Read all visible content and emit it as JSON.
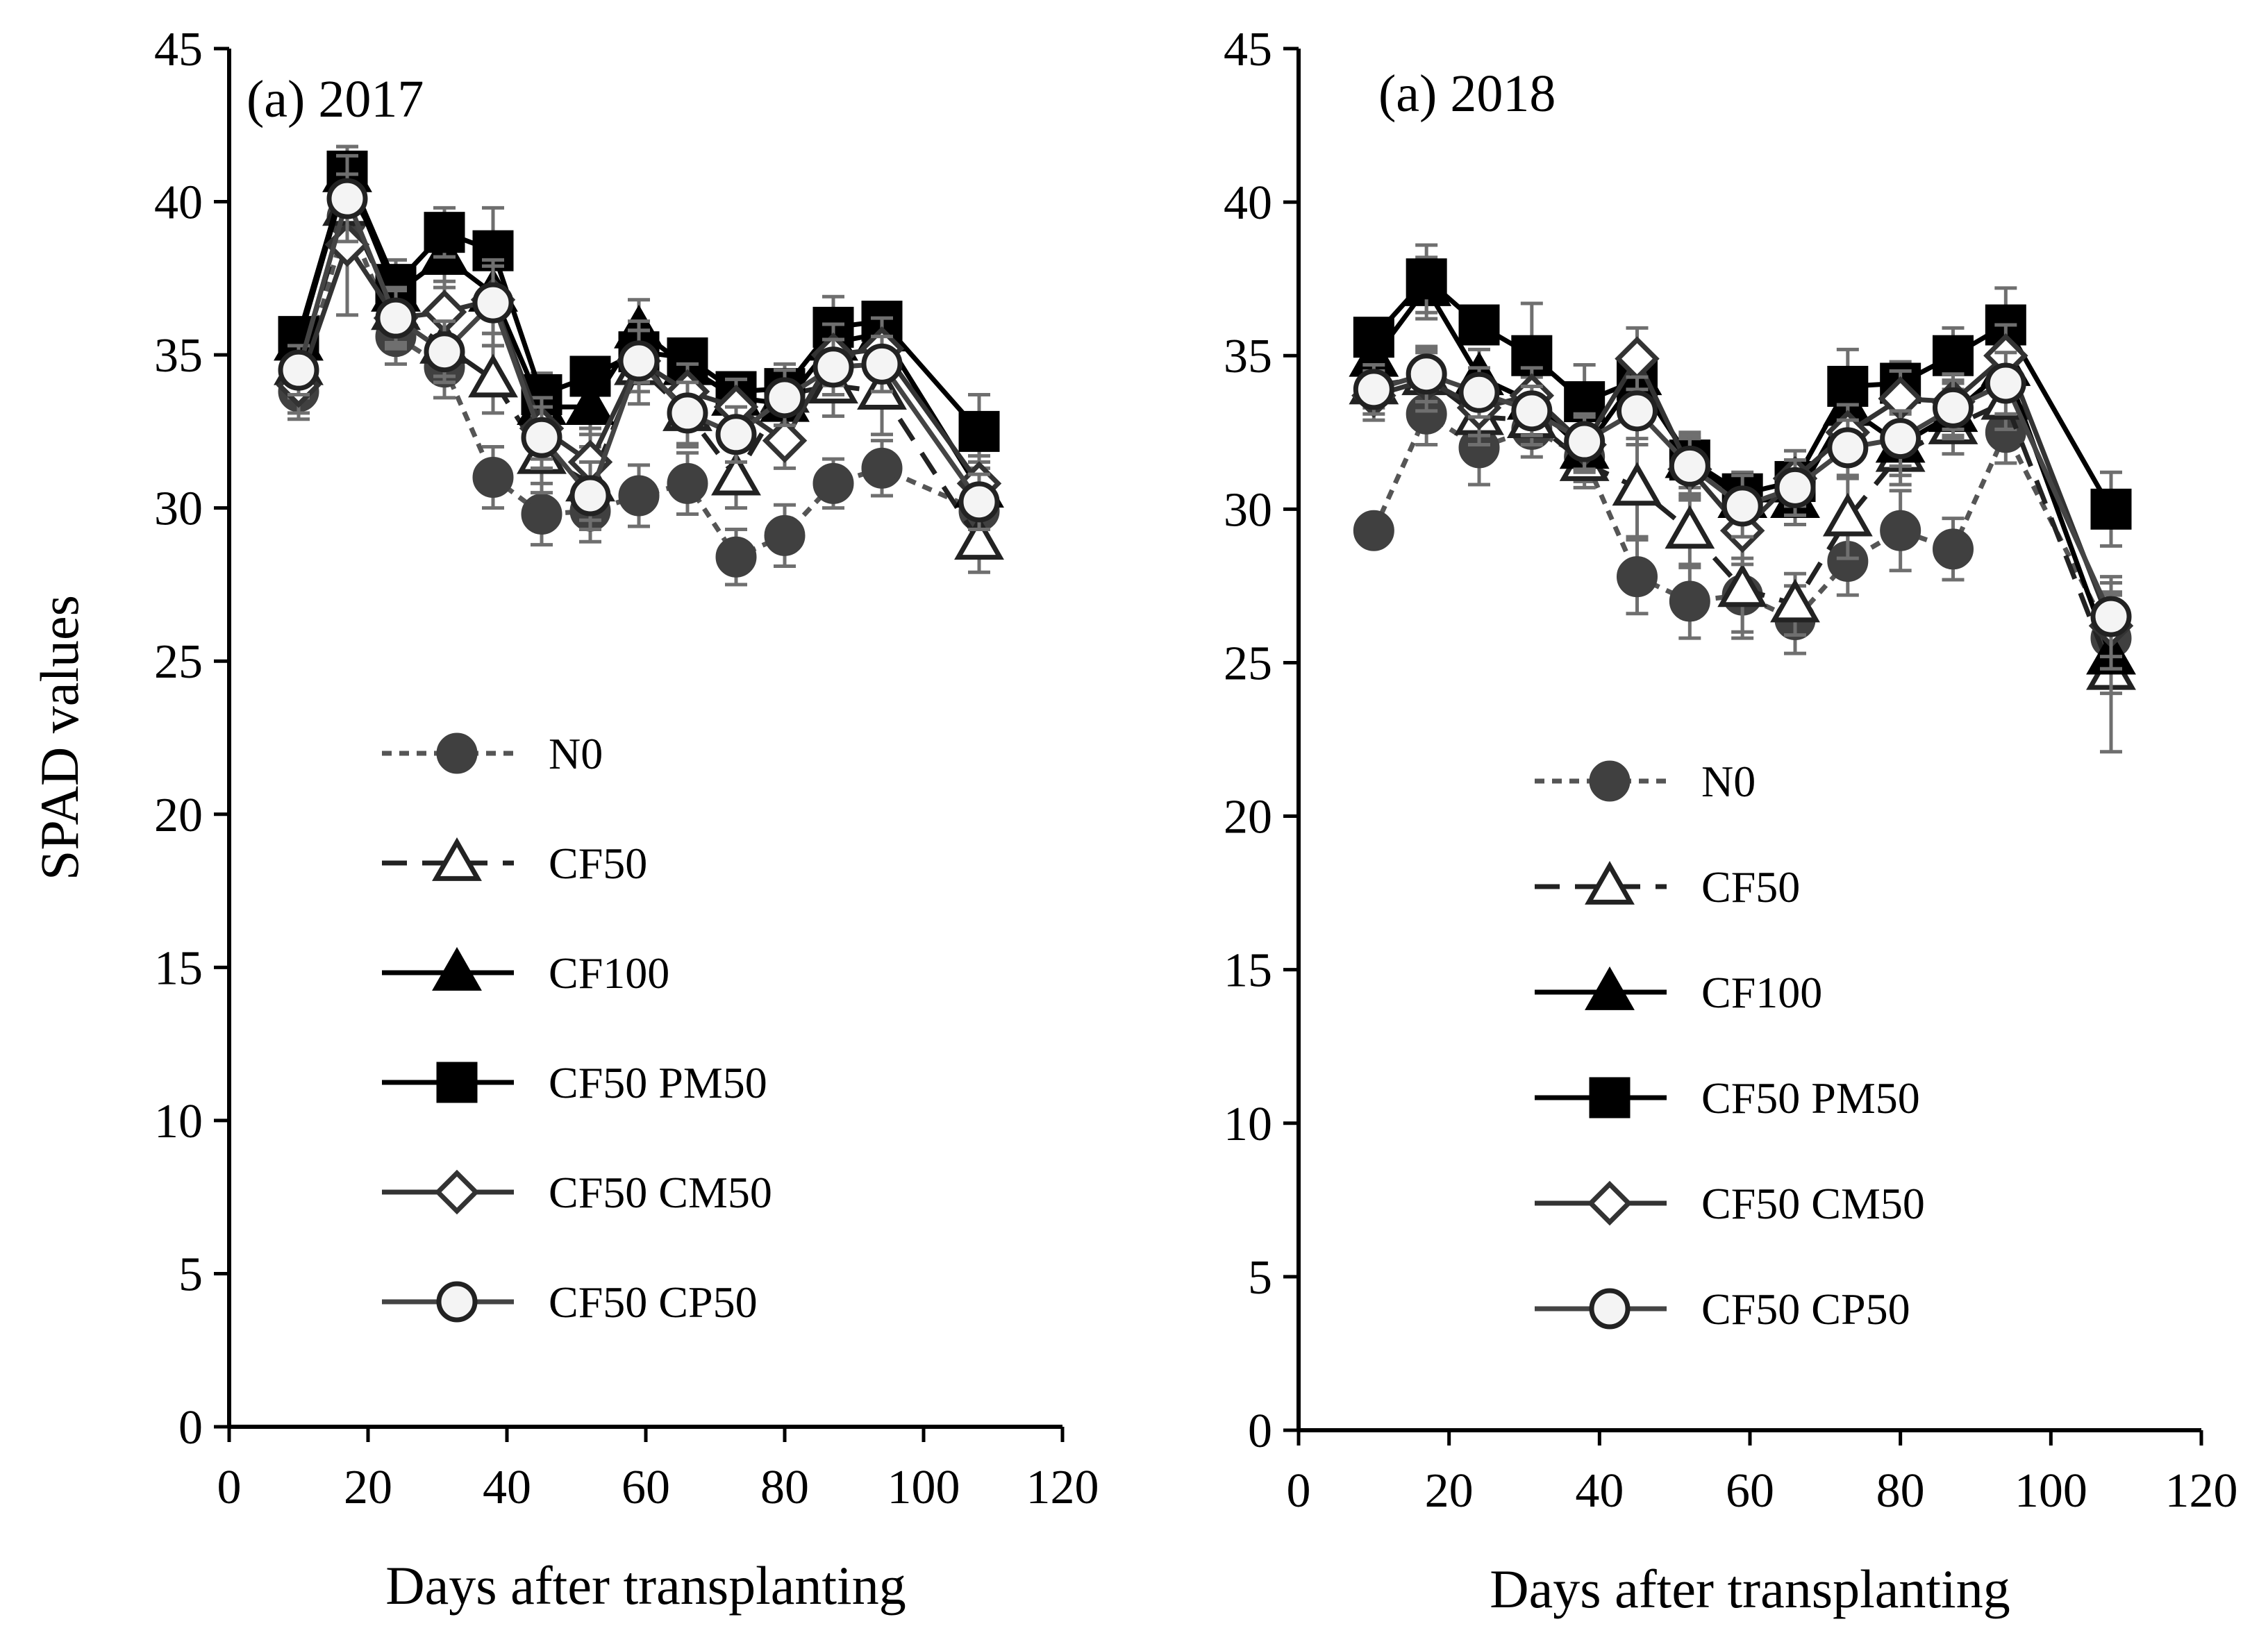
{
  "chart_data": [
    {
      "type": "line",
      "title": "(a) 2017",
      "xlabel": "Days after transplanting",
      "ylabel": "SPAD values",
      "xlim": [
        0,
        120
      ],
      "ylim": [
        0,
        45
      ],
      "x_ticks": [
        "0",
        "20",
        "40",
        "60",
        "80",
        "100",
        "120"
      ],
      "y_ticks": [
        "0",
        "5",
        "10",
        "15",
        "20",
        "25",
        "30",
        "35",
        "40",
        "45"
      ],
      "grid": false,
      "legend_position": "lower-center",
      "x": [
        10,
        17,
        24,
        31,
        38,
        45,
        52,
        59,
        66,
        73,
        80,
        87,
        94,
        108
      ],
      "series": [
        {
          "name": "N0",
          "values": [
            33.8,
            39.5,
            35.6,
            34.6,
            31.0,
            29.8,
            29.9,
            30.4,
            30.8,
            28.4,
            29.1,
            30.8,
            31.3,
            29.9
          ],
          "errors": [
            0.9,
            1.0,
            0.9,
            1.0,
            1.0,
            1.0,
            1.0,
            1.0,
            1.0,
            0.9,
            1.0,
            0.8,
            0.9,
            0.9
          ]
        },
        {
          "name": "CF50",
          "values": [
            34.6,
            39.8,
            36.4,
            35.3,
            34.2,
            31.7,
            30.8,
            34.6,
            33.1,
            31.0,
            33.7,
            34.0,
            33.8,
            28.9
          ],
          "errors": [
            1.0,
            1.2,
            1.0,
            1.0,
            1.1,
            1.2,
            1.2,
            1.2,
            1.1,
            1.0,
            1.0,
            1.0,
            1.4,
            1.0
          ]
        },
        {
          "name": "CF100",
          "values": [
            35.4,
            40.9,
            37.0,
            38.2,
            37.0,
            33.3,
            33.3,
            35.8,
            34.6,
            33.6,
            33.4,
            35.4,
            35.7,
            30.6
          ],
          "errors": [
            0.7,
            0.9,
            0.8,
            1.0,
            1.3,
            0.8,
            0.9,
            1.0,
            0.7,
            0.6,
            0.7,
            0.8,
            0.7,
            0.9
          ]
        },
        {
          "name": "CF50 PM50",
          "values": [
            35.6,
            41.0,
            37.3,
            39.0,
            38.4,
            33.7,
            34.3,
            35.1,
            34.9,
            33.8,
            33.9,
            35.9,
            36.1,
            32.5
          ],
          "errors": [
            0.6,
            0.8,
            0.8,
            0.8,
            1.4,
            0.7,
            0.6,
            1.0,
            0.5,
            0.6,
            0.6,
            1.0,
            0.6,
            1.2
          ]
        },
        {
          "name": "CF50 CM50",
          "values": [
            34.0,
            38.6,
            36.2,
            36.4,
            36.8,
            32.6,
            31.5,
            34.8,
            33.8,
            33.3,
            32.2,
            35.0,
            35.2,
            30.8
          ],
          "errors": [
            0.9,
            2.3,
            1.0,
            1.0,
            1.1,
            1.0,
            1.1,
            1.0,
            0.9,
            0.9,
            0.9,
            1.0,
            1.0,
            0.9
          ]
        },
        {
          "name": "CF50 CP50",
          "values": [
            34.5,
            40.1,
            36.2,
            35.1,
            36.7,
            32.3,
            30.4,
            34.8,
            33.1,
            32.4,
            33.6,
            34.6,
            34.7,
            30.2
          ],
          "errors": [
            0.8,
            1.4,
            0.9,
            1.0,
            1.4,
            1.0,
            1.1,
            1.0,
            1.0,
            0.9,
            0.9,
            0.9,
            0.9,
            0.9
          ]
        }
      ]
    },
    {
      "type": "line",
      "title": "(a) 2018",
      "xlabel": "Days after transplanting",
      "ylabel": "",
      "xlim": [
        0,
        120
      ],
      "ylim": [
        0,
        45
      ],
      "x_ticks": [
        "0",
        "20",
        "40",
        "60",
        "80",
        "100",
        "120"
      ],
      "y_ticks": [
        "0",
        "5",
        "10",
        "15",
        "20",
        "25",
        "30",
        "35",
        "40",
        "45"
      ],
      "grid": false,
      "legend_position": "lower-center",
      "x": [
        10,
        17,
        24,
        31,
        38,
        45,
        52,
        59,
        66,
        73,
        80,
        87,
        94,
        108
      ],
      "series": [
        {
          "name": "N0",
          "values": [
            29.3,
            33.1,
            32.0,
            32.6,
            31.7,
            27.8,
            27.0,
            27.2,
            26.4,
            28.3,
            29.3,
            28.7,
            32.5,
            25.8
          ],
          "errors": [
            0.0,
            1.0,
            1.2,
            0.9,
            0.8,
            1.2,
            1.2,
            1.2,
            1.1,
            1.1,
            1.3,
            1.0,
            1.0,
            1.4
          ]
        },
        {
          "name": "CF50",
          "values": [
            34.0,
            34.3,
            33.0,
            32.9,
            31.5,
            30.7,
            29.3,
            27.4,
            26.9,
            29.7,
            31.8,
            32.7,
            33.5,
            24.7
          ],
          "errors": [
            0.7,
            0.8,
            0.9,
            0.8,
            0.8,
            1.6,
            1.2,
            1.6,
            1.0,
            1.3,
            1.0,
            0.9,
            0.9,
            2.6
          ]
        },
        {
          "name": "CF100",
          "values": [
            34.9,
            37.2,
            34.3,
            33.5,
            31.9,
            34.3,
            31.6,
            30.3,
            30.3,
            33.3,
            32.1,
            33.1,
            34.6,
            25.2
          ],
          "errors": [
            0.6,
            1.0,
            0.9,
            0.8,
            0.6,
            0.9,
            0.7,
            0.7,
            0.8,
            0.9,
            1.0,
            0.8,
            0.9,
            1.2
          ]
        },
        {
          "name": "CF50 PM50",
          "values": [
            35.6,
            37.5,
            36.0,
            35.0,
            33.5,
            34.2,
            31.6,
            30.5,
            30.9,
            34.0,
            34.1,
            35.0,
            36.0,
            30.0
          ],
          "errors": [
            0.5,
            1.1,
            0.6,
            1.7,
            1.2,
            0.7,
            0.9,
            0.7,
            0.7,
            1.2,
            0.7,
            0.9,
            1.2,
            1.2
          ]
        },
        {
          "name": "CF50 CM50",
          "values": [
            33.7,
            34.2,
            33.3,
            33.7,
            32.1,
            34.9,
            31.3,
            29.3,
            31.0,
            32.5,
            33.6,
            33.5,
            35.0,
            26.2
          ],
          "errors": [
            0.8,
            1.0,
            0.9,
            0.9,
            0.9,
            1.0,
            1.0,
            1.1,
            0.9,
            0.9,
            0.9,
            0.9,
            1.0,
            1.4
          ]
        },
        {
          "name": "CF50 CP50",
          "values": [
            33.9,
            34.4,
            33.8,
            33.2,
            32.2,
            33.2,
            31.4,
            30.1,
            30.7,
            32.0,
            32.3,
            33.3,
            34.1,
            26.5
          ],
          "errors": [
            0.8,
            0.9,
            0.8,
            0.8,
            0.9,
            1.1,
            1.0,
            1.0,
            0.9,
            0.9,
            0.9,
            0.9,
            1.0,
            1.3
          ]
        }
      ]
    }
  ],
  "series_styles": {
    "N0": {
      "line_color": "#555555",
      "dash": "14 11",
      "marker": "circle",
      "marker_fill": "#404040",
      "marker_stroke": "#404040"
    },
    "CF50": {
      "line_color": "#222222",
      "dash": "36 22",
      "marker": "triangle",
      "marker_fill": "#ffffff",
      "marker_stroke": "#222222"
    },
    "CF100": {
      "line_color": "#000000",
      "dash": "",
      "marker": "triangle",
      "marker_fill": "#000000",
      "marker_stroke": "#000000"
    },
    "CF50 PM50": {
      "line_color": "#000000",
      "dash": "",
      "marker": "square",
      "marker_fill": "#000000",
      "marker_stroke": "#000000"
    },
    "CF50 CM50": {
      "line_color": "#333333",
      "dash": "",
      "marker": "diamond",
      "marker_fill": "#ffffff",
      "marker_stroke": "#333333"
    },
    "CF50 CP50": {
      "line_color": "#444444",
      "dash": "",
      "marker": "circle",
      "marker_fill": "#f4f4f4",
      "marker_stroke": "#222222"
    }
  },
  "error_bar_color": "#6f6f6f"
}
